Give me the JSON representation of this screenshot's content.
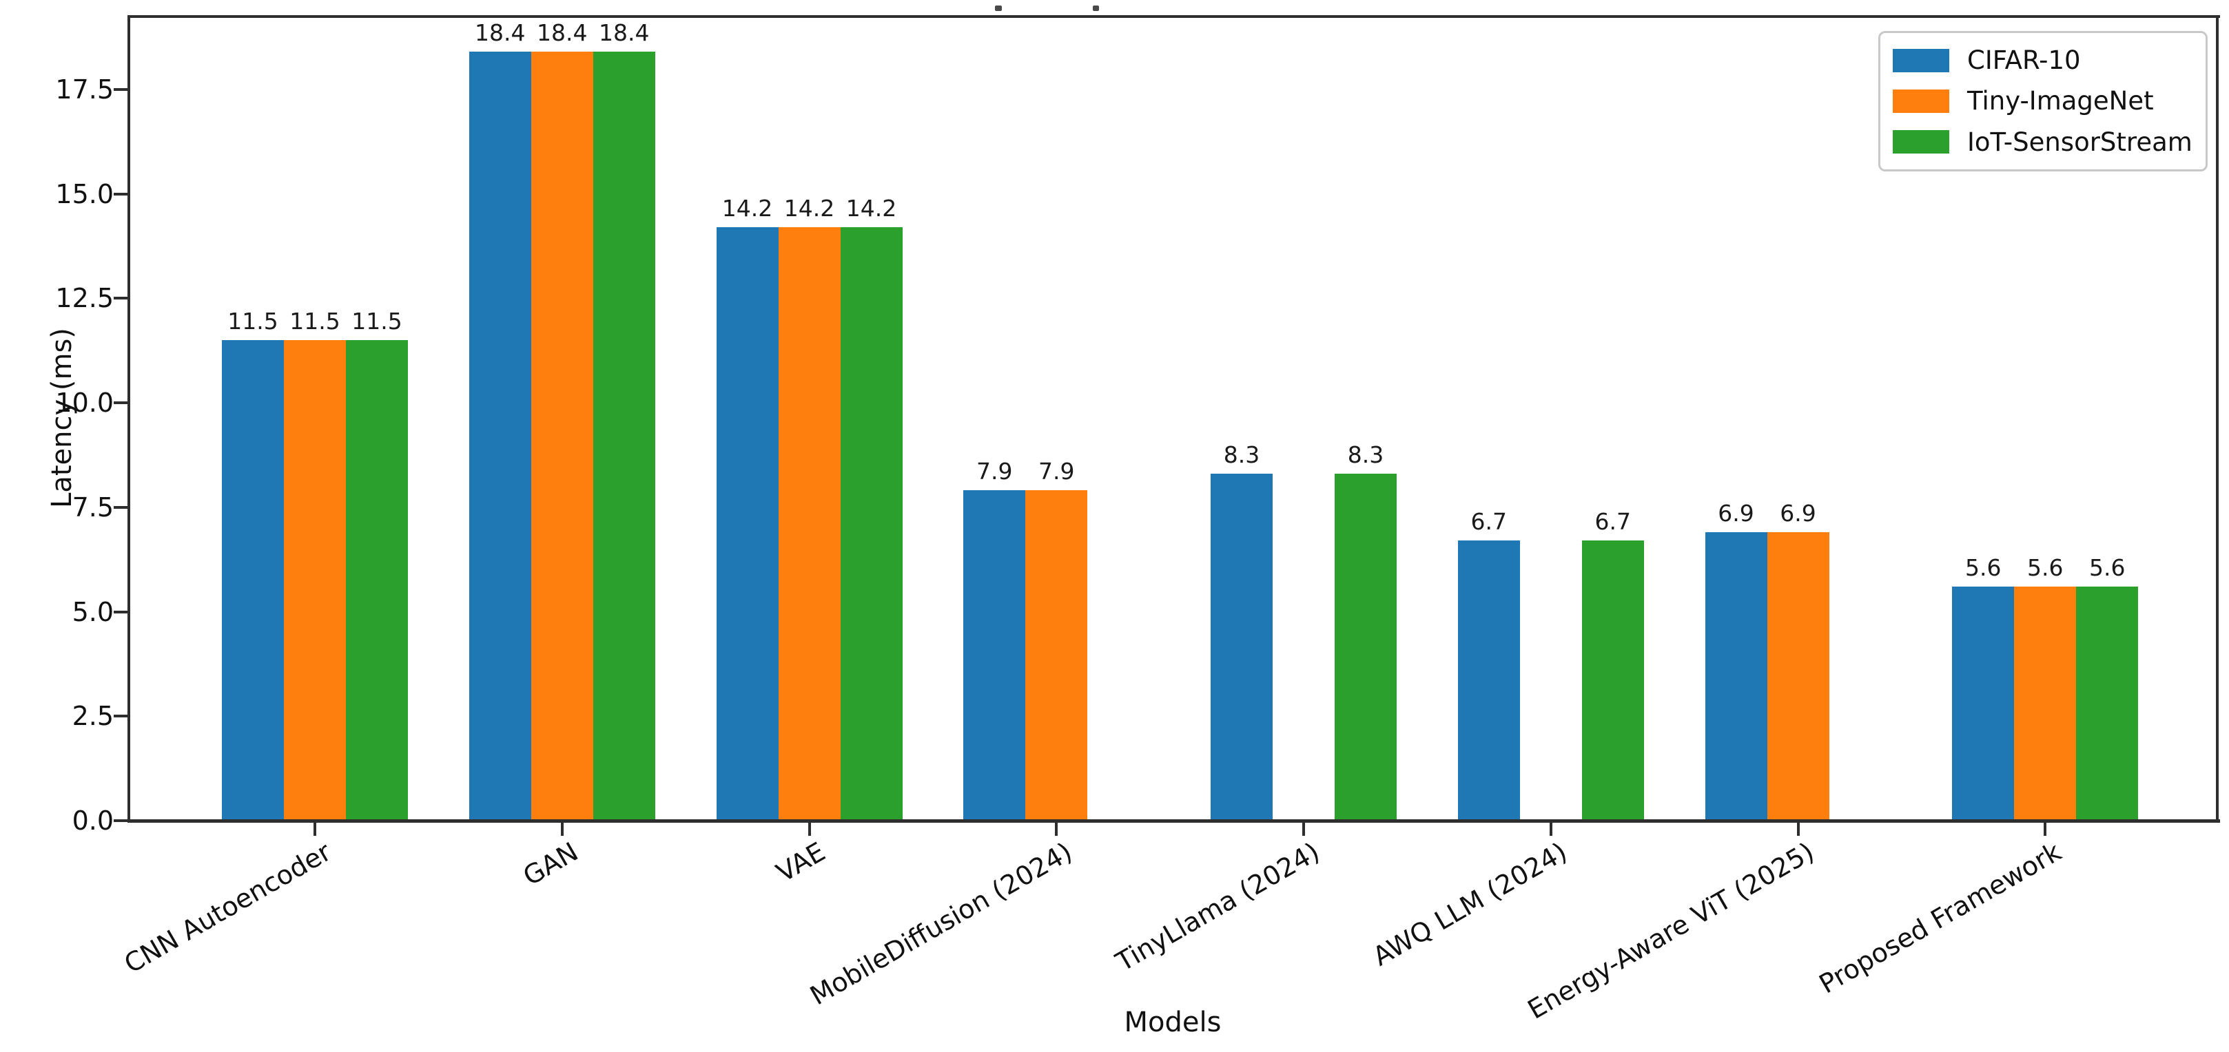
{
  "chart_data": {
    "type": "bar",
    "xlabel": "Models",
    "ylabel": "Latency (ms)",
    "ylim": [
      0,
      19.3
    ],
    "yticks": [
      "0.0",
      "2.5",
      "5.0",
      "7.5",
      "10.0",
      "12.5",
      "15.0",
      "17.5"
    ],
    "grid": false,
    "legend_position": "upper right",
    "bar_value_labels": true,
    "categories": [
      "CNN Autoencoder",
      "GAN",
      "VAE",
      "MobileDiffusion (2024)",
      "TinyLlama (2024)",
      "AWQ LLM (2024)",
      "Energy-Aware ViT (2025)",
      "Proposed Framework"
    ],
    "series": [
      {
        "name": "CIFAR-10",
        "color": "#1f77b4",
        "values": [
          11.5,
          18.4,
          14.2,
          7.9,
          8.3,
          6.7,
          6.9,
          5.6
        ]
      },
      {
        "name": "Tiny-ImageNet",
        "color": "#ff7f0e",
        "values": [
          11.5,
          18.4,
          14.2,
          7.9,
          null,
          null,
          6.9,
          5.6
        ]
      },
      {
        "name": "IoT-SensorStream",
        "color": "#2ca02c",
        "values": [
          11.5,
          18.4,
          14.2,
          null,
          8.3,
          6.7,
          null,
          5.6
        ]
      }
    ]
  }
}
